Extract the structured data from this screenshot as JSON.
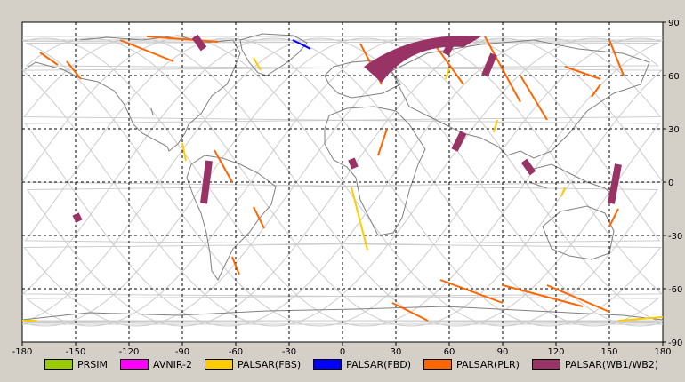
{
  "map": {
    "x_ticks": [
      "-180",
      "-150",
      "-120",
      "-90",
      "-60",
      "-30",
      "0",
      "30",
      "60",
      "90",
      "120",
      "150",
      "180"
    ],
    "y_ticks": [
      "90",
      "60",
      "30",
      "0",
      "-30",
      "-60",
      "-90"
    ],
    "lon_range": [
      -180,
      180
    ],
    "lat_range": [
      -90,
      90
    ]
  },
  "legend": [
    {
      "label": "PRSIM",
      "color": "#99cc00"
    },
    {
      "label": "AVNIR-2",
      "color": "#ff00ff"
    },
    {
      "label": "PALSAR(FBS)",
      "color": "#ffcc00"
    },
    {
      "label": "PALSAR(FBD)",
      "color": "#0000ff"
    },
    {
      "label": "PALSAR(PLR)",
      "color": "#ff6600"
    },
    {
      "label": "PALSAR(WB1/WB2)",
      "color": "#993366"
    }
  ],
  "chart_data": {
    "type": "map",
    "xlim": [
      -180,
      180
    ],
    "ylim": [
      -90,
      90
    ],
    "grid": true,
    "legend_placement": "bottom",
    "series": [
      {
        "name": "PRSIM",
        "color": "#99cc00",
        "segments": []
      },
      {
        "name": "AVNIR-2",
        "color": "#ff00ff",
        "segments": []
      },
      {
        "name": "PALSAR(FBS)",
        "color": "#ffcc00",
        "segments": [
          [
            [
              -50,
              70
            ],
            [
              -46,
              63
            ]
          ],
          [
            [
              -90,
              22
            ],
            [
              -88,
              12
            ]
          ],
          [
            [
              5,
              -3
            ],
            [
              14,
              -38
            ]
          ],
          [
            [
              60,
              64
            ],
            [
              58,
              58
            ]
          ],
          [
            [
              125,
              -3
            ],
            [
              123,
              -8
            ]
          ],
          [
            [
              -180,
              -78
            ],
            [
              -172,
              -78
            ]
          ],
          [
            [
              155,
              -78
            ],
            [
              180,
              -76
            ]
          ],
          [
            [
              87,
              35
            ],
            [
              85,
              28
            ]
          ]
        ]
      },
      {
        "name": "PALSAR(FBD)",
        "color": "#0000ff",
        "segments": [
          [
            [
              -28,
              80
            ],
            [
              -18,
              75
            ]
          ]
        ]
      },
      {
        "name": "PALSAR(PLR)",
        "color": "#ff6600",
        "segments": [
          [
            [
              -125,
              80
            ],
            [
              -95,
              68
            ]
          ],
          [
            [
              -110,
              82
            ],
            [
              -70,
              79
            ]
          ],
          [
            [
              -155,
              68
            ],
            [
              -147,
              58
            ]
          ],
          [
            [
              -72,
              18
            ],
            [
              -62,
              0
            ]
          ],
          [
            [
              -50,
              -14
            ],
            [
              -44,
              -26
            ]
          ],
          [
            [
              10,
              78
            ],
            [
              22,
              55
            ]
          ],
          [
            [
              25,
              30
            ],
            [
              20,
              15
            ]
          ],
          [
            [
              50,
              80
            ],
            [
              68,
              55
            ]
          ],
          [
            [
              80,
              82
            ],
            [
              100,
              45
            ]
          ],
          [
            [
              100,
              60
            ],
            [
              115,
              35
            ]
          ],
          [
            [
              125,
              65
            ],
            [
              145,
              58
            ]
          ],
          [
            [
              150,
              80
            ],
            [
              158,
              60
            ]
          ],
          [
            [
              55,
              -55
            ],
            [
              90,
              -68
            ]
          ],
          [
            [
              90,
              -58
            ],
            [
              135,
              -70
            ]
          ],
          [
            [
              28,
              -68
            ],
            [
              48,
              -78
            ]
          ],
          [
            [
              115,
              -58
            ],
            [
              150,
              -73
            ]
          ],
          [
            [
              -170,
              73
            ],
            [
              -160,
              66
            ]
          ],
          [
            [
              155,
              -15
            ],
            [
              150,
              -25
            ]
          ],
          [
            [
              -62,
              -42
            ],
            [
              -58,
              -52
            ]
          ],
          [
            [
              145,
              55
            ],
            [
              140,
              48
            ]
          ]
        ]
      },
      {
        "name": "PALSAR(WB1/WB2)",
        "color": "#993366",
        "segments": [
          [
            [
              -83,
              82
            ],
            [
              -78,
              75
            ]
          ],
          [
            [
              -75,
              12
            ],
            [
              -78,
              -12
            ]
          ],
          [
            [
              -150,
              -18
            ],
            [
              -148,
              -22
            ]
          ],
          [
            [
              5,
              13
            ],
            [
              7,
              8
            ]
          ],
          [
            [
              68,
              28
            ],
            [
              63,
              18
            ]
          ],
          [
            [
              85,
              72
            ],
            [
              80,
              60
            ]
          ],
          [
            [
              102,
              12
            ],
            [
              107,
              5
            ]
          ],
          [
            [
              155,
              10
            ],
            [
              151,
              -12
            ]
          ],
          [
            [
              62,
              80
            ],
            [
              58,
              72
            ]
          ]
        ]
      }
    ]
  }
}
